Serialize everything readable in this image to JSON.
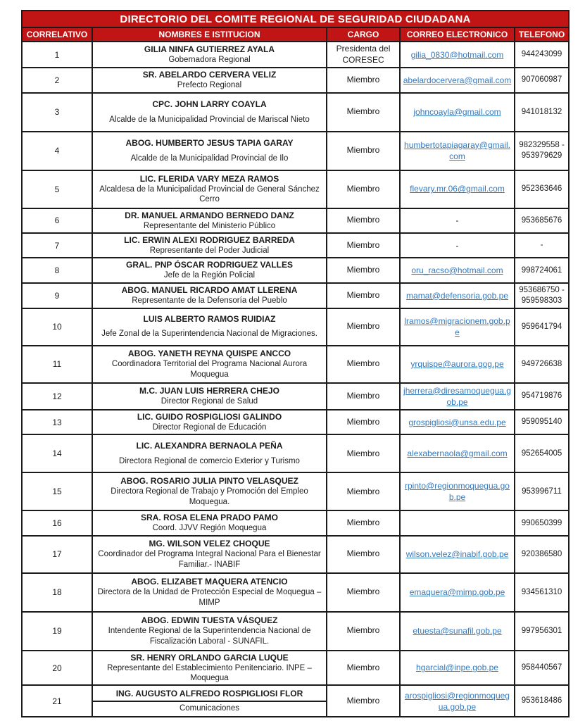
{
  "title": "DIRECTORIO DEL COMITE REGIONAL DE SEGURIDAD CIUDADANA",
  "columns": [
    "CORRELATIVO",
    "NOMBRES E ISTITUCION",
    "CARGO",
    "CORREO ELECTRONICO",
    "TELEFONO"
  ],
  "colors": {
    "header_bg": "#C11414",
    "header_text": "#FFFFFF",
    "border": "#1B1B1B",
    "text": "#1C1C1C",
    "link": "#3579BD"
  },
  "rows": [
    {
      "correlativo": "1",
      "nombre": "GILIA NINFA GUTIERREZ AYALA",
      "institucion": "Gobernadora Regional",
      "cargo": "Presidenta del CORESEC",
      "correo": "gilia_0830@hotmail.com",
      "telefono": "944243099"
    },
    {
      "correlativo": "2",
      "nombre": "SR. ABELARDO CERVERA VELIZ",
      "institucion": "Prefecto Regional",
      "cargo": "Miembro",
      "correo": "abelardocervera@gmail.com",
      "telefono": "907060987"
    },
    {
      "correlativo": "3",
      "nombre": "CPC. JOHN LARRY COAYLA",
      "institucion": "Alcalde de la Municipalidad Provincial de Mariscal Nieto",
      "cargo": "Miembro",
      "correo": "johncoayla@gmail.com",
      "telefono": "941018132"
    },
    {
      "correlativo": "4",
      "nombre": "ABOG. HUMBERTO JESUS TAPIA GARAY",
      "institucion": "Alcalde de la Municipalidad Provincial de Ilo",
      "cargo": "Miembro",
      "correo": "humbertotapiagaray@gmail.com",
      "telefono": "982329558 - 953979629"
    },
    {
      "correlativo": "5",
      "nombre": "LIC. FLERIDA VARY MEZA RAMOS",
      "institucion": "Alcaldesa de la Municipalidad Provincial de General Sánchez Cerro",
      "cargo": "Miembro",
      "correo": "flevary.mr.06@gmail.com",
      "telefono": "952363646"
    },
    {
      "correlativo": "6",
      "nombre": "DR. MANUEL ARMANDO BERNEDO DANZ",
      "institucion": "Representante del Ministerio Público",
      "cargo": "Miembro",
      "correo": "-",
      "telefono": "953685676"
    },
    {
      "correlativo": "7",
      "nombre": "LIC. ERWIN ALEXI RODRIGUEZ BARREDA",
      "institucion": "Representante del Poder Judicial",
      "cargo": "Miembro",
      "correo": "-",
      "telefono": "-"
    },
    {
      "correlativo": "8",
      "nombre": "GRAL. PNP ÓSCAR RODRIGUEZ VALLES",
      "institucion": "Jefe de la Región Policial",
      "cargo": "Miembro",
      "correo": "oru_racso@hotmail.com",
      "telefono": "998724061"
    },
    {
      "correlativo": "9",
      "nombre": "ABOG. MANUEL RICARDO AMAT LLERENA",
      "institucion": "Representante de la Defensoría del Pueblo",
      "cargo": "Miembro",
      "correo": "mamat@defensoria.gob.pe",
      "telefono": "953686750 - 959598303"
    },
    {
      "correlativo": "10",
      "nombre": "LUIS ALBERTO RAMOS RUIDIAZ",
      "institucion": "Jefe Zonal de la Superintendencia Nacional de Migraciones.",
      "cargo": "Miembro",
      "correo": "lramos@migracionem.gob.pe",
      "telefono": "959641794"
    },
    {
      "correlativo": "11",
      "nombre": "ABOG. YANETH REYNA QUISPE ANCCO",
      "institucion": "Coordinadora Territorial del Programa Nacional Aurora Moquegua",
      "cargo": "Miembro",
      "correo": "yrquispe@aurora.gog.pe",
      "telefono": "949726638"
    },
    {
      "correlativo": "12",
      "nombre": "M.C. JUAN LUIS HERRERA CHEJO",
      "institucion": "Director Regional de Salud",
      "cargo": "Miembro",
      "correo": "jherrera@diresamoquegua.gob.pe",
      "telefono": "954719876"
    },
    {
      "correlativo": "13",
      "nombre": "LIC. GUIDO ROSPIGLIOSI GALINDO",
      "institucion": "Director Regional de Educación",
      "cargo": "Miembro",
      "correo": "grospigliosi@unsa.edu.pe",
      "telefono": "959095140"
    },
    {
      "correlativo": "14",
      "nombre": "LIC. ALEXANDRA BERNAOLA PEÑA",
      "institucion": "Directora Regional de comercio Exterior y Turismo",
      "cargo": "Miembro",
      "correo": "alexabernaola@gmail.com",
      "telefono": "952654005"
    },
    {
      "correlativo": "15",
      "nombre": "ABOG. ROSARIO JULIA PINTO VELASQUEZ",
      "institucion": "Directora Regional de Trabajo y Promoción del Empleo Moquegua.",
      "cargo": "Miembro",
      "correo": "rpinto@regionmoquegua.gob.pe",
      "telefono": "953996711"
    },
    {
      "correlativo": "16",
      "nombre": "SRA. ROSA ELENA PRADO PAMO",
      "institucion": "Coord. JJVV Región Moquegua",
      "cargo": "Miembro",
      "correo": "",
      "telefono": "990650399"
    },
    {
      "correlativo": "17",
      "nombre": "MG. WILSON VELEZ CHOQUE",
      "institucion": "Coordinador del Programa Integral Nacional Para el Bienestar Familiar.- INABIF",
      "cargo": "Miembro",
      "correo": "wilson.velez@inabif.gob.pe",
      "telefono": "920386580"
    },
    {
      "correlativo": "18",
      "nombre": "ABOG. ELIZABET MAQUERA ATENCIO",
      "institucion": "Directora de la Unidad de Protección Especial de Moquegua – MIMP",
      "cargo": "Miembro",
      "correo": "emaquera@mimp.gob.pe",
      "telefono": "934561310"
    },
    {
      "correlativo": "19",
      "nombre": "ABOG. EDWIN TUESTA VÁSQUEZ",
      "institucion": "Intendente Regional de la Superintendencia Nacional de Fiscalización Laboral - SUNAFIL.",
      "cargo": "Miembro",
      "correo": "etuesta@sunafil.gob.pe",
      "telefono": "997956301"
    },
    {
      "correlativo": "20",
      "nombre": "SR. HENRY ORLANDO GARCIA LUQUE",
      "institucion": "Representante del Establecimiento Penitenciario. INPE – Moquegua",
      "cargo": "Miembro",
      "correo": "hgarcial@inpe.gob.pe",
      "telefono": "958440567"
    },
    {
      "correlativo": "21",
      "nombre": "ING. AUGUSTO ALFREDO ROSPIGLIOSI FLOR",
      "institucion": "Comunicaciones",
      "cargo": "Miembro",
      "correo": "arospigliosi@regionmoquegua.gob.pe",
      "telefono": "953618486",
      "split_cell": true
    }
  ]
}
